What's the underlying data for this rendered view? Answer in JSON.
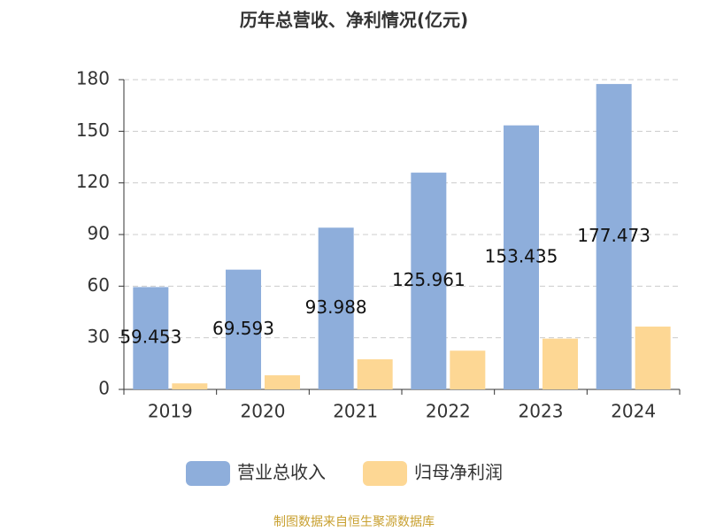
{
  "chart_data": {
    "type": "bar",
    "title": "历年总营收、净利情况(亿元)",
    "categories": [
      "2019",
      "2020",
      "2021",
      "2022",
      "2023",
      "2024"
    ],
    "series": [
      {
        "name": "营业总收入",
        "color": "#8eaedb",
        "values": [
          59.453,
          69.593,
          93.988,
          125.961,
          153.435,
          177.473
        ]
      },
      {
        "name": "归母净利润",
        "color": "#fdd794",
        "values": [
          3.5,
          8.2,
          17.5,
          22.5,
          29.5,
          36.5
        ]
      }
    ],
    "ylim": [
      0,
      180
    ],
    "yticks": [
      0,
      30,
      60,
      90,
      120,
      150,
      180
    ],
    "grid": true,
    "source": "制图数据来自恒生聚源数据库"
  }
}
